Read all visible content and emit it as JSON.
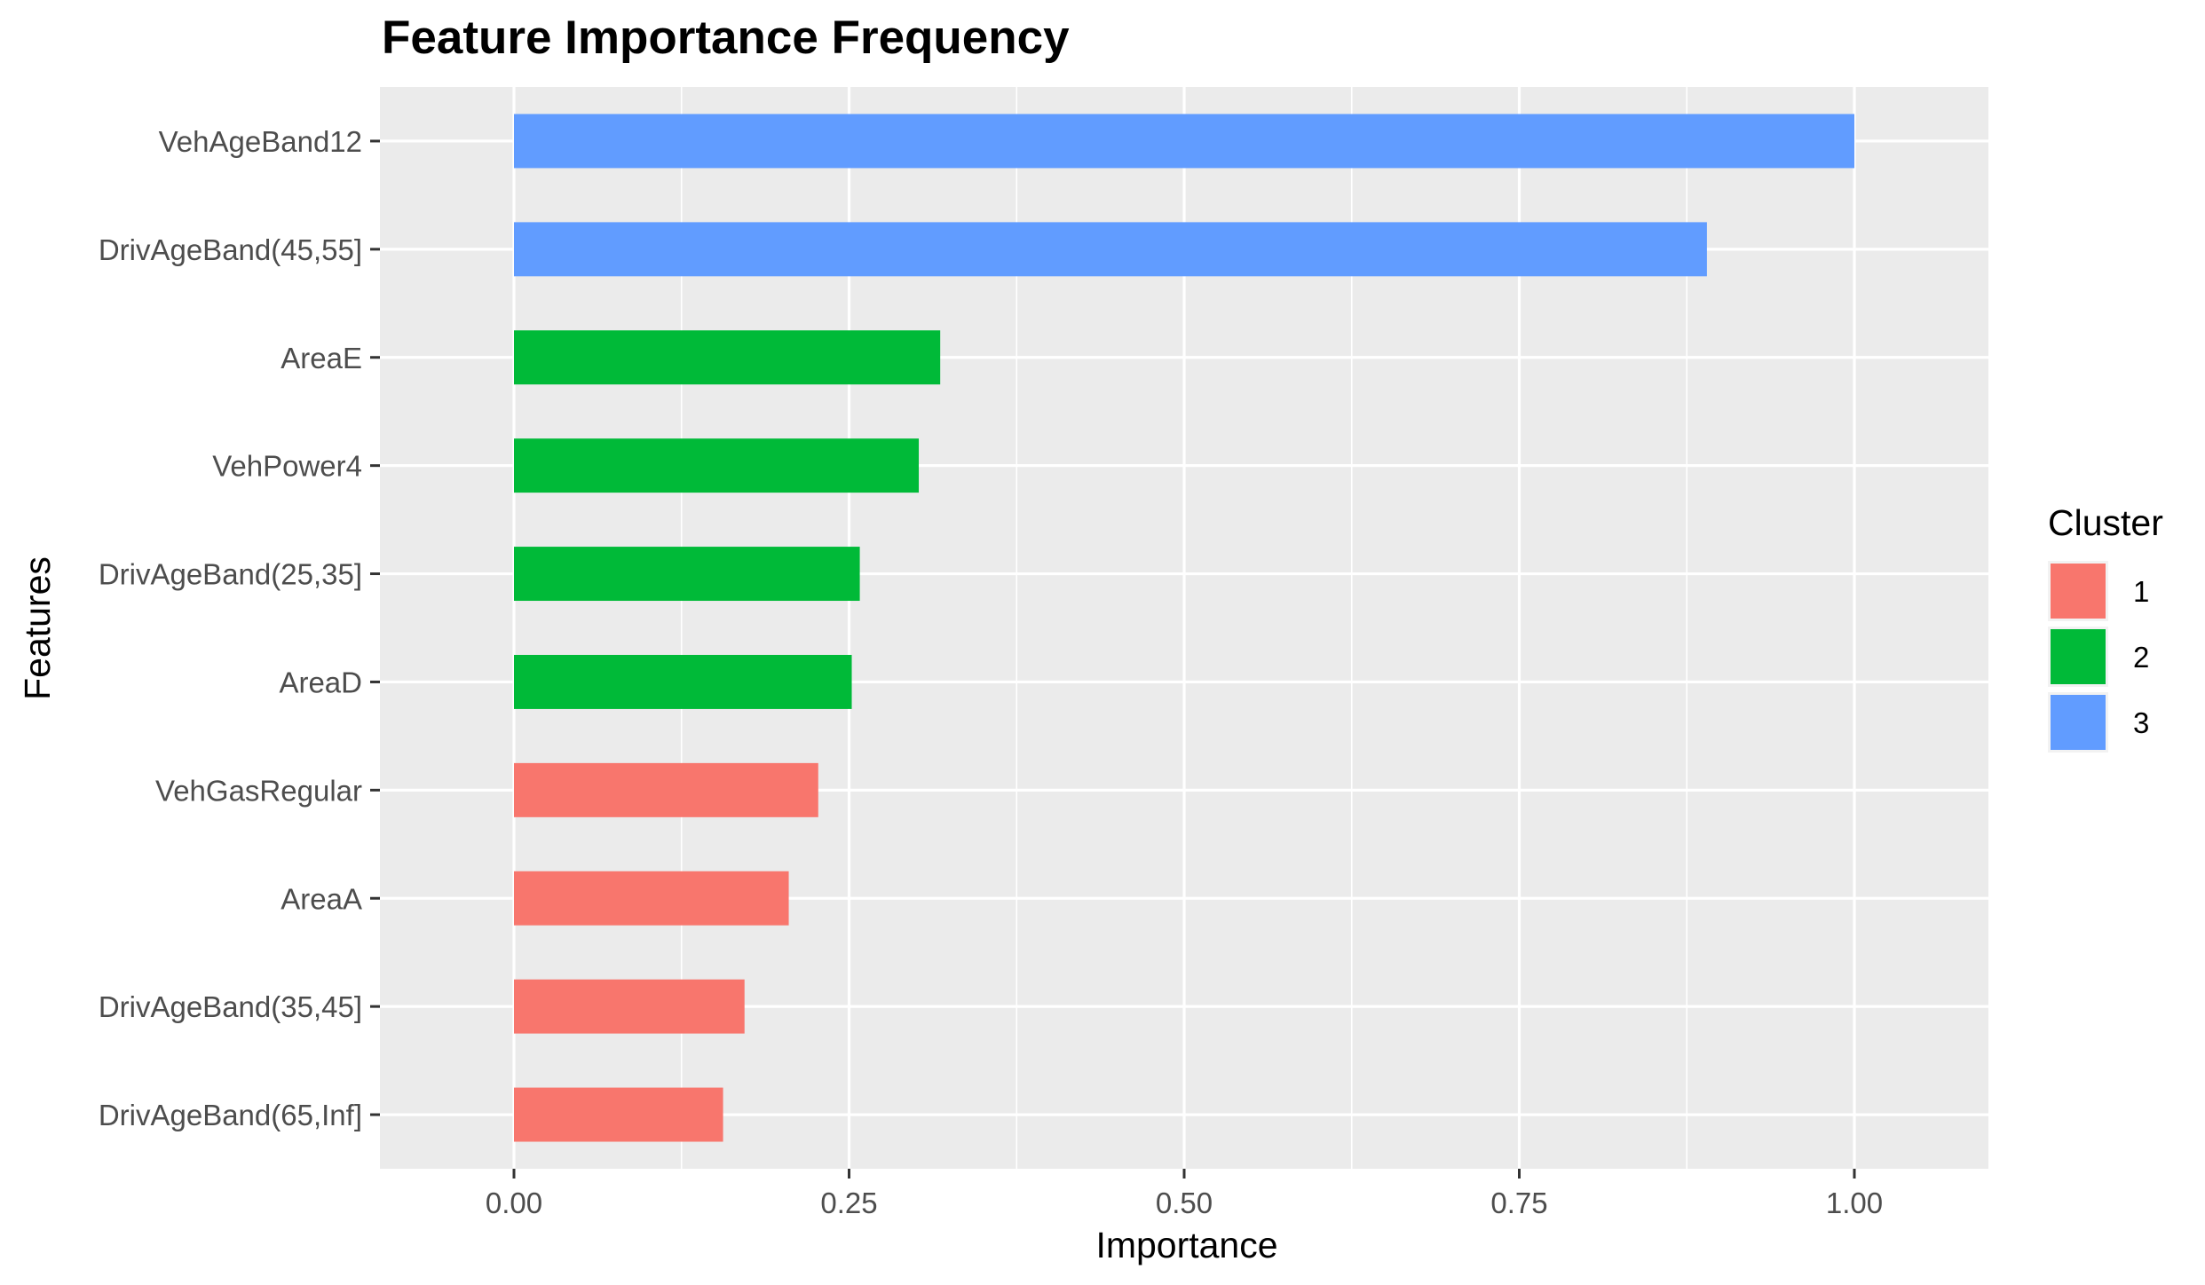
{
  "chart_data": {
    "type": "bar",
    "orientation": "horizontal",
    "title": "Feature Importance Frequency",
    "xlabel": "Importance",
    "ylabel": "Features",
    "xlim": [
      -0.1,
      1.1
    ],
    "x_ticks": [
      0,
      0.25,
      0.5,
      0.75,
      1.0
    ],
    "x_tick_labels": [
      "0.00",
      "0.25",
      "0.50",
      "0.75",
      "1.00"
    ],
    "grid": true,
    "legend": {
      "title": "Cluster",
      "position": "right",
      "entries": [
        {
          "label": "1",
          "color": "#F8766D"
        },
        {
          "label": "2",
          "color": "#00BA38"
        },
        {
          "label": "3",
          "color": "#619CFF"
        }
      ]
    },
    "categories": [
      "VehAgeBand12",
      "DrivAgeBand(45,55]",
      "AreaE",
      "VehPower4",
      "DrivAgeBand(25,35]",
      "AreaD",
      "VehGasRegular",
      "AreaA",
      "DrivAgeBand(35,45]",
      "DrivAgeBand(65,Inf]"
    ],
    "values": [
      1.0,
      0.89,
      0.318,
      0.302,
      0.258,
      0.252,
      0.227,
      0.205,
      0.172,
      0.156
    ],
    "cluster": [
      "3",
      "3",
      "2",
      "2",
      "2",
      "2",
      "1",
      "1",
      "1",
      "1"
    ]
  },
  "colors": {
    "panel_background": "#EBEBEB",
    "grid_line": "#FFFFFF",
    "axis_text": "#4D4D4D",
    "axis_title": "#000000",
    "cluster_1": "#F8766D",
    "cluster_2": "#00BA38",
    "cluster_3": "#619CFF"
  }
}
